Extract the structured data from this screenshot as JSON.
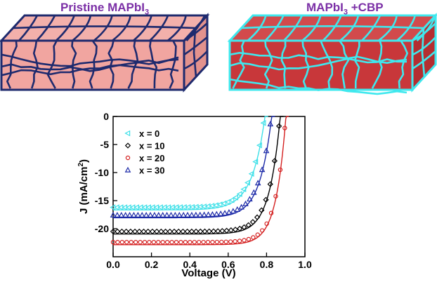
{
  "labels": {
    "left_sample": "Pristine MAPbI",
    "left_sub": "3",
    "right_sample": "MAPbI",
    "right_sub": "3",
    "right_suffix": " +CBP"
  },
  "colors": {
    "pristine_grain": "#f1a5a0",
    "pristine_boundary": "#1e2a6e",
    "cbp_grain": "#c8373a",
    "cbp_boundary": "#3fe8ee",
    "title_purple": "#7b2fa6"
  },
  "chart_data": {
    "type": "line",
    "xlabel": "Voltage (V)",
    "ylabel": "J (mA/cm",
    "ylabel_sup": "2",
    "ylabel_close": ")",
    "xlim": [
      0.0,
      1.0
    ],
    "ylim": [
      -25,
      0
    ],
    "xticks": [
      "0.0",
      "0.2",
      "0.4",
      "0.6",
      "0.8",
      "1.0"
    ],
    "yticks": [
      "0",
      "-5",
      "-10",
      "-15",
      "-20"
    ],
    "legend_position": "top-left",
    "series": [
      {
        "name": "x = 0",
        "color": "#3ee0e8",
        "marker": "triangle-left",
        "jsc": -16.2,
        "voc": 0.79,
        "n": 2.6
      },
      {
        "name": "x = 10",
        "color": "#000000",
        "marker": "diamond",
        "jsc": -20.5,
        "voc": 0.87,
        "n": 2.2
      },
      {
        "name": "x = 20",
        "color": "#d42020",
        "marker": "circle",
        "jsc": -22.4,
        "voc": 0.9,
        "n": 2.0
      },
      {
        "name": "x = 30",
        "color": "#1c2aa8",
        "marker": "triangle-up",
        "jsc": -17.6,
        "voc": 0.825,
        "n": 2.4
      }
    ]
  }
}
